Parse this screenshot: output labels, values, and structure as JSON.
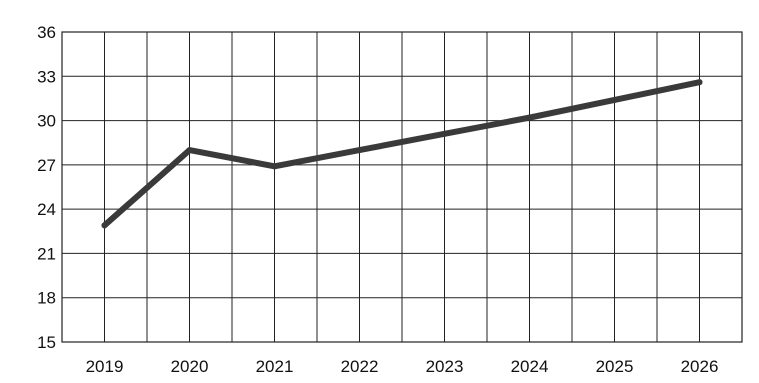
{
  "chart_data": {
    "type": "line",
    "title": "",
    "xlabel": "",
    "ylabel": "",
    "categories": [
      "2019",
      "2020",
      "2021",
      "2022",
      "2023",
      "2024",
      "2025",
      "2026"
    ],
    "series": [
      {
        "values": [
          22.9,
          28.0,
          26.9,
          28.0,
          29.1,
          30.2,
          31.4,
          32.6
        ]
      }
    ],
    "ylim": [
      15,
      36
    ],
    "yticks": [
      15,
      18,
      21,
      24,
      27,
      30,
      33,
      36
    ],
    "grid": true,
    "legend": "none",
    "colors": {
      "line": "#3a3a3a",
      "grid": "#222222",
      "text": "#111111",
      "background": "#ffffff"
    }
  }
}
